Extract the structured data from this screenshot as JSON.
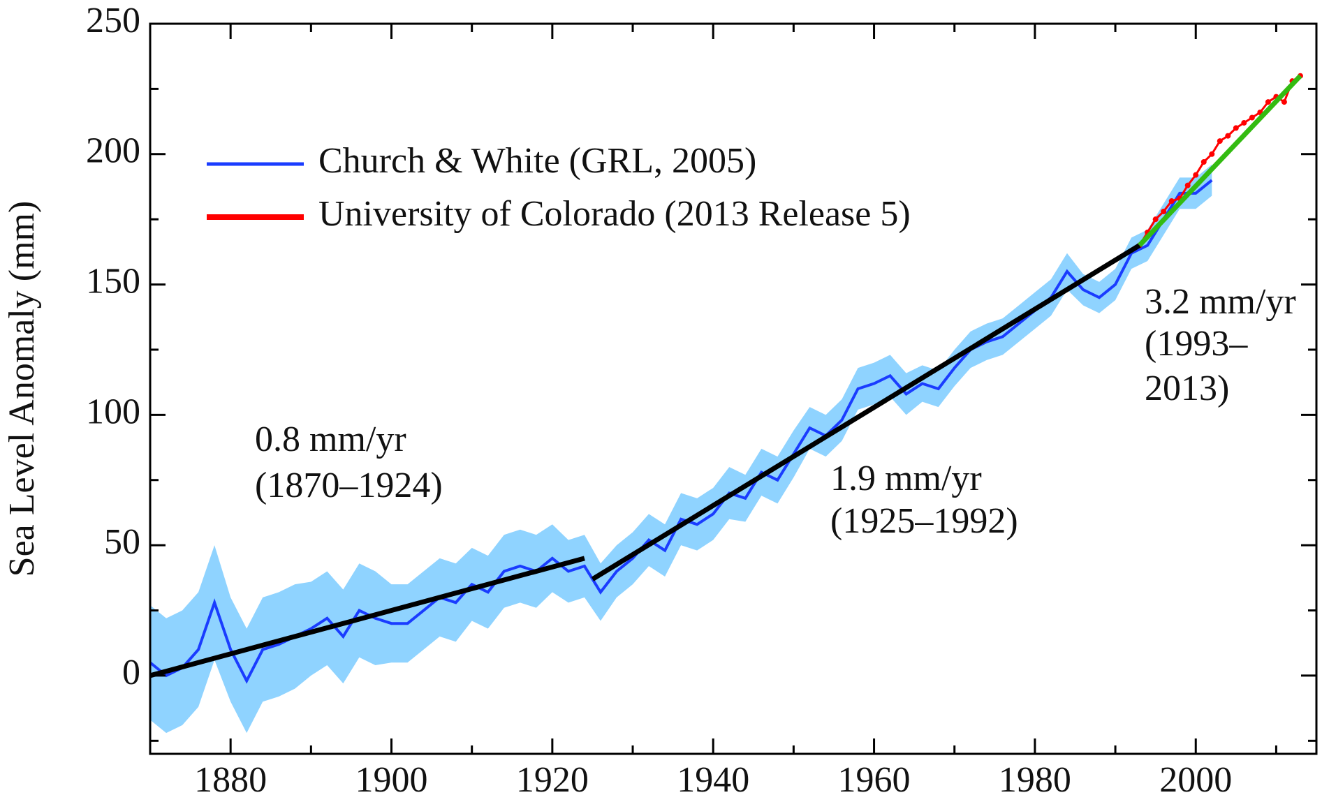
{
  "chart_data": {
    "type": "line",
    "ylabel": "Sea Level Anomaly (mm)",
    "xlim": [
      1870,
      2015
    ],
    "ylim": [
      -30,
      250
    ],
    "xticks": [
      1880,
      1900,
      1920,
      1940,
      1960,
      1980,
      2000
    ],
    "xminorticks": [
      1870,
      1890,
      1910,
      1930,
      1950,
      1970,
      1990,
      2010
    ],
    "yticks": [
      0,
      50,
      100,
      150,
      200,
      250
    ],
    "yminorticks": [
      -25,
      25,
      75,
      125,
      175,
      225
    ],
    "legend": "upper left",
    "series": [
      {
        "name": "Church & White (GRL, 2005)",
        "color": "#1a3cff",
        "band_color": "#8fd3ff",
        "x": [
          1870,
          1872,
          1874,
          1876,
          1878,
          1880,
          1882,
          1884,
          1886,
          1888,
          1890,
          1892,
          1894,
          1896,
          1898,
          1900,
          1902,
          1904,
          1906,
          1908,
          1910,
          1912,
          1914,
          1916,
          1918,
          1920,
          1922,
          1924,
          1926,
          1928,
          1930,
          1932,
          1934,
          1936,
          1938,
          1940,
          1942,
          1944,
          1946,
          1948,
          1950,
          1952,
          1954,
          1956,
          1958,
          1960,
          1962,
          1964,
          1966,
          1968,
          1970,
          1972,
          1974,
          1976,
          1978,
          1980,
          1982,
          1984,
          1986,
          1988,
          1990,
          1992,
          1994,
          1996,
          1998,
          2000,
          2002
        ],
        "values": [
          5,
          0,
          3,
          10,
          28,
          10,
          -2,
          10,
          12,
          15,
          18,
          22,
          15,
          25,
          22,
          20,
          20,
          25,
          30,
          28,
          35,
          32,
          40,
          42,
          40,
          45,
          40,
          42,
          32,
          40,
          45,
          52,
          48,
          60,
          58,
          62,
          70,
          68,
          78,
          75,
          85,
          95,
          92,
          98,
          110,
          112,
          115,
          108,
          112,
          110,
          118,
          125,
          128,
          130,
          135,
          140,
          145,
          155,
          148,
          145,
          150,
          162,
          165,
          175,
          185,
          185,
          190
        ],
        "error": [
          22,
          22,
          22,
          22,
          22,
          20,
          20,
          20,
          20,
          20,
          18,
          18,
          18,
          18,
          18,
          15,
          15,
          15,
          15,
          15,
          14,
          14,
          14,
          14,
          14,
          13,
          12,
          12,
          11,
          10,
          10,
          10,
          10,
          10,
          10,
          10,
          10,
          9,
          9,
          9,
          9,
          8,
          8,
          8,
          8,
          8,
          8,
          8,
          7,
          7,
          7,
          7,
          7,
          7,
          7,
          7,
          7,
          7,
          6,
          6,
          6,
          6,
          6,
          6,
          6,
          6,
          6
        ]
      },
      {
        "name": "University of Colorado (2013 Release 5)",
        "color": "#ff0000",
        "x": [
          1993,
          1994,
          1995,
          1996,
          1997,
          1998,
          1999,
          2000,
          2001,
          2002,
          2003,
          2004,
          2005,
          2006,
          2007,
          2008,
          2009,
          2010,
          2011,
          2012,
          2013
        ],
        "values": [
          165,
          170,
          175,
          178,
          182,
          183,
          188,
          192,
          197,
          200,
          205,
          207,
          210,
          212,
          214,
          216,
          220,
          222,
          220,
          228,
          230
        ]
      }
    ],
    "trend_lines": [
      {
        "x": [
          1870,
          1924
        ],
        "values": [
          0,
          45
        ],
        "color": "#000000"
      },
      {
        "x": [
          1925,
          1993
        ],
        "values": [
          37,
          165
        ],
        "color": "#000000"
      },
      {
        "x": [
          1993,
          2013
        ],
        "values": [
          165,
          230
        ],
        "color": "#33bb11"
      }
    ],
    "annotations": [
      "0.8 mm/yr",
      "(1870–1924)",
      "1.9 mm/yr",
      "(1925–1992)",
      "3.2 mm/yr",
      "(1993–",
      "2013)"
    ]
  }
}
